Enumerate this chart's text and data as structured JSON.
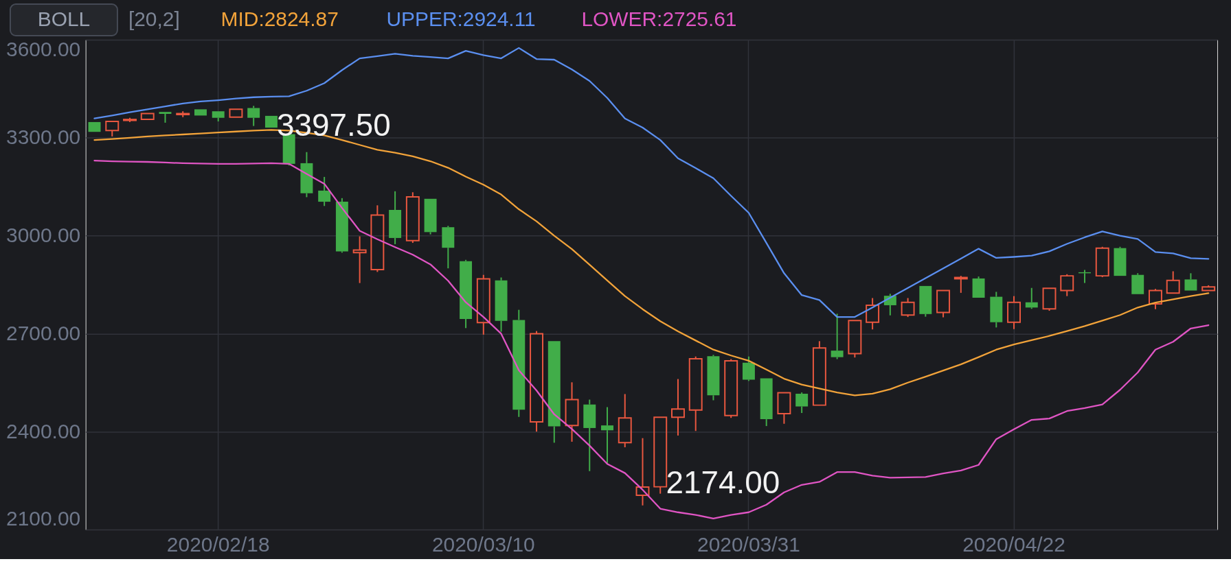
{
  "chart_data": {
    "type": "candlestick",
    "title": "BOLL",
    "subtitle": "[20,2]",
    "categories": [
      null,
      null,
      null,
      null,
      null,
      null,
      null,
      "2020/02/18",
      null,
      null,
      null,
      null,
      null,
      null,
      null,
      null,
      null,
      null,
      null,
      null,
      null,
      null,
      "2020/03/10",
      null,
      null,
      null,
      null,
      null,
      null,
      null,
      null,
      null,
      null,
      null,
      null,
      null,
      null,
      "2020/03/31",
      null,
      null,
      null,
      null,
      null,
      null,
      null,
      null,
      null,
      null,
      null,
      null,
      null,
      null,
      "2020/04/22",
      null,
      null,
      null,
      null,
      null,
      null,
      null,
      null,
      null,
      null,
      null
    ],
    "ohlc": [
      [
        3348,
        3348,
        3318,
        3318
      ],
      [
        3322,
        3350,
        3304,
        3350
      ],
      [
        3353,
        3361,
        3348,
        3356
      ],
      [
        3356,
        3374,
        3356,
        3374
      ],
      [
        3379,
        3379,
        3346,
        3373
      ],
      [
        3371,
        3381,
        3363,
        3374
      ],
      [
        3387,
        3387,
        3368,
        3368
      ],
      [
        3381,
        3381,
        3350,
        3361
      ],
      [
        3363,
        3387,
        3363,
        3387
      ],
      [
        3391,
        3397.5,
        3336,
        3361
      ],
      [
        3367,
        3367,
        3331,
        3331
      ],
      [
        3311,
        3315,
        3215,
        3220
      ],
      [
        3222,
        3256,
        3118,
        3130
      ],
      [
        3138,
        3180,
        3091,
        3104
      ],
      [
        3104,
        3115,
        2948,
        2952
      ],
      [
        2948,
        2998,
        2855,
        2956
      ],
      [
        2896,
        3093,
        2889,
        3063
      ],
      [
        3079,
        3136,
        2974,
        2993
      ],
      [
        2985,
        3133,
        2978,
        3119
      ],
      [
        3113,
        3113,
        3004,
        3011
      ],
      [
        3026,
        3030,
        2900,
        2963
      ],
      [
        2922,
        2926,
        2717,
        2745
      ],
      [
        2734,
        2880,
        2697,
        2868
      ],
      [
        2863,
        2872,
        2706,
        2739
      ],
      [
        2742,
        2773,
        2445,
        2467
      ],
      [
        2430,
        2708,
        2400,
        2700
      ],
      [
        2677,
        2677,
        2366,
        2416
      ],
      [
        2419,
        2551,
        2369,
        2498
      ],
      [
        2483,
        2498,
        2279,
        2411
      ],
      [
        2419,
        2475,
        2301,
        2404
      ],
      [
        2366,
        2515,
        2352,
        2442
      ],
      [
        2205,
        2380,
        2174,
        2230
      ],
      [
        2231,
        2444,
        2210,
        2444
      ],
      [
        2444,
        2561,
        2388,
        2469
      ],
      [
        2466,
        2630,
        2402,
        2623
      ],
      [
        2631,
        2635,
        2496,
        2511
      ],
      [
        2449,
        2622,
        2442,
        2617
      ],
      [
        2611,
        2630,
        2555,
        2559
      ],
      [
        2563,
        2563,
        2417,
        2438
      ],
      [
        2455,
        2519,
        2424,
        2519
      ],
      [
        2516,
        2520,
        2457,
        2477
      ],
      [
        2481,
        2677,
        2481,
        2656
      ],
      [
        2648,
        2761,
        2622,
        2628
      ],
      [
        2639,
        2740,
        2627,
        2740
      ],
      [
        2735,
        2809,
        2713,
        2787
      ],
      [
        2816,
        2822,
        2756,
        2787
      ],
      [
        2757,
        2809,
        2751,
        2796
      ],
      [
        2846,
        2846,
        2752,
        2760
      ],
      [
        2765,
        2832,
        2750,
        2832
      ],
      [
        2868,
        2877,
        2825,
        2872
      ],
      [
        2869,
        2875,
        2810,
        2810
      ],
      [
        2813,
        2828,
        2719,
        2735
      ],
      [
        2735,
        2815,
        2714,
        2796
      ],
      [
        2796,
        2840,
        2776,
        2780
      ],
      [
        2776,
        2839,
        2770,
        2839
      ],
      [
        2832,
        2882,
        2815,
        2877
      ],
      [
        2888,
        2895,
        2855,
        2885
      ],
      [
        2877,
        2966,
        2873,
        2962
      ],
      [
        2962,
        2966,
        2877,
        2877
      ],
      [
        2880,
        2885,
        2821,
        2821
      ],
      [
        2791,
        2837,
        2775,
        2832
      ],
      [
        2824,
        2891,
        2824,
        2863
      ],
      [
        2866,
        2885,
        2832,
        2832
      ],
      [
        2832,
        2848,
        2832,
        2843
      ]
    ],
    "colors": [
      "#41ad49",
      "#e9573f",
      "#e9573f",
      "#e9573f",
      "#41ad49",
      "#e9573f",
      "#41ad49",
      "#41ad49",
      "#e9573f",
      "#41ad49",
      "#41ad49",
      "#41ad49",
      "#41ad49",
      "#41ad49",
      "#41ad49",
      "#e9573f",
      "#e9573f",
      "#41ad49",
      "#e9573f",
      "#41ad49",
      "#41ad49",
      "#41ad49",
      "#e9573f",
      "#41ad49",
      "#41ad49",
      "#e9573f",
      "#41ad49",
      "#e9573f",
      "#41ad49",
      "#41ad49",
      "#e9573f",
      "#e9573f",
      "#e9573f",
      "#e9573f",
      "#e9573f",
      "#41ad49",
      "#e9573f",
      "#41ad49",
      "#41ad49",
      "#e9573f",
      "#41ad49",
      "#e9573f",
      "#41ad49",
      "#e9573f",
      "#e9573f",
      "#41ad49",
      "#e9573f",
      "#41ad49",
      "#e9573f",
      "#e9573f",
      "#41ad49",
      "#41ad49",
      "#e9573f",
      "#41ad49",
      "#e9573f",
      "#e9573f",
      "#41ad49",
      "#e9573f",
      "#41ad49",
      "#41ad49",
      "#e9573f",
      "#e9573f",
      "#41ad49",
      "#e9573f"
    ],
    "series": [
      {
        "name": "MID:2824.87",
        "type": "line",
        "color": "#f2a33a",
        "values": [
          3293,
          3296,
          3300,
          3304,
          3307,
          3310,
          3313,
          3316,
          3319,
          3322,
          3324,
          3322,
          3315,
          3307,
          3293,
          3278,
          3263,
          3254,
          3243,
          3228,
          3208,
          3181,
          3156,
          3126,
          3081,
          3044,
          3000,
          2959,
          2911,
          2863,
          2815,
          2775,
          2738,
          2707,
          2679,
          2651,
          2633,
          2617,
          2590,
          2562,
          2544,
          2532,
          2520,
          2511,
          2516,
          2530,
          2550,
          2568,
          2587,
          2606,
          2628,
          2651,
          2667,
          2680,
          2693,
          2708,
          2723,
          2740,
          2757,
          2780,
          2795,
          2805,
          2815,
          2824
        ]
      },
      {
        "name": "UPPER:2924.11",
        "type": "line",
        "color": "#5b8ff0",
        "values": [
          3359,
          3368,
          3378,
          3387,
          3396,
          3405,
          3411,
          3415,
          3420,
          3424,
          3426,
          3427,
          3444,
          3467,
          3507,
          3543,
          3550,
          3557,
          3551,
          3547,
          3543,
          3566,
          3553,
          3543,
          3575,
          3541,
          3539,
          3509,
          3474,
          3422,
          3359,
          3331,
          3293,
          3237,
          3207,
          3176,
          3122,
          3070,
          2978,
          2885,
          2818,
          2803,
          2751,
          2751,
          2780,
          2810,
          2840,
          2870,
          2900,
          2930,
          2960,
          2932,
          2935,
          2939,
          2952,
          2975,
          2995,
          3013,
          3000,
          2990,
          2950,
          2946,
          2931,
          2929
        ]
      },
      {
        "name": "LOWER:2725.61",
        "type": "line",
        "color": "#e055c4",
        "values": [
          3230,
          3228,
          3227,
          3226,
          3224,
          3222,
          3221,
          3220,
          3220,
          3221,
          3222,
          3220,
          3189,
          3159,
          3085,
          3015,
          2989,
          2965,
          2942,
          2912,
          2862,
          2796,
          2751,
          2700,
          2588,
          2526,
          2453,
          2408,
          2357,
          2301,
          2273,
          2222,
          2164,
          2153,
          2145,
          2134,
          2145,
          2153,
          2176,
          2214,
          2237,
          2246,
          2276,
          2276,
          2265,
          2259,
          2260,
          2261,
          2272,
          2281,
          2298,
          2377,
          2407,
          2436,
          2440,
          2463,
          2472,
          2483,
          2528,
          2581,
          2651,
          2675,
          2716,
          2726
        ]
      }
    ],
    "ylim": [
      2100,
      3600
    ],
    "yticks": [
      {
        "value": 2100,
        "label": "2100.00"
      },
      {
        "value": 2400,
        "label": "2400.00"
      },
      {
        "value": 2700,
        "label": "2700.00"
      },
      {
        "value": 3000,
        "label": "3000.00"
      },
      {
        "value": 3300,
        "label": "3300.00"
      },
      {
        "value": 3600,
        "label": "3600.00"
      }
    ],
    "grid": true,
    "legend": "top left",
    "annotations": [
      "3397.50",
      "2174.00"
    ]
  }
}
